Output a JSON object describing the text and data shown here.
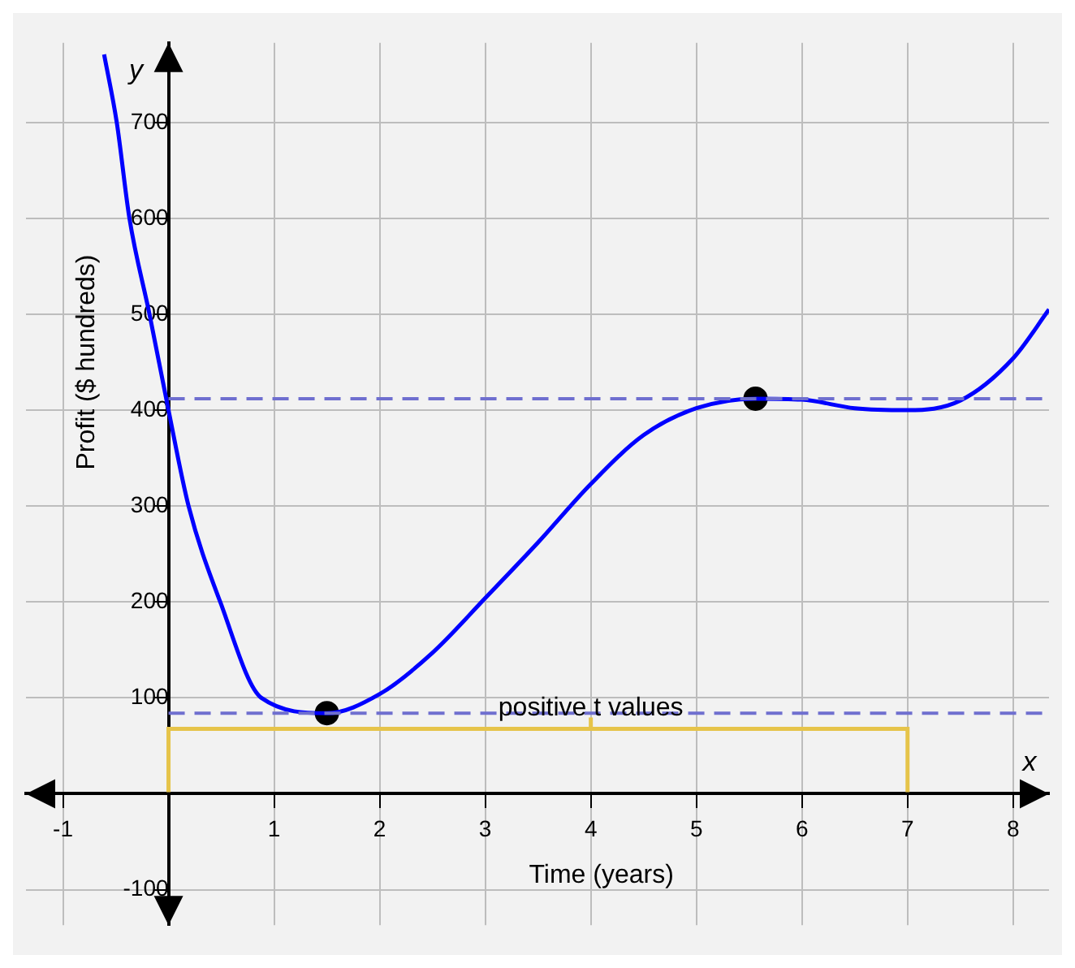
{
  "chart_data": {
    "type": "line",
    "xlabel": "Time (years)",
    "ylabel": "Profit ($ hundreds)",
    "annotations": [
      "x",
      "y",
      "positive t values"
    ],
    "xlim": [
      -1.35,
      8.34
    ],
    "ylim": [
      -137,
      783
    ],
    "xticks": [
      -1,
      1,
      2,
      3,
      4,
      5,
      6,
      7,
      8
    ],
    "yticks": [
      -100,
      100,
      200,
      300,
      400,
      500,
      600,
      700
    ],
    "grid": true,
    "legend": false,
    "series": [
      {
        "color": "#0000ff",
        "marker": "none",
        "x": [
          -0.61,
          -0.49,
          -0.37,
          -0.18,
          0,
          0.19,
          0.49,
          0.88,
          1.5,
          2,
          2.5,
          3,
          3.5,
          4,
          4.5,
          5,
          5.56,
          6,
          6.5,
          7,
          7.5,
          8,
          8.34
        ],
        "values": [
          771,
          700,
          600,
          500,
          400,
          300,
          200,
          100,
          84,
          104,
          147,
          204,
          262,
          323,
          374,
          402,
          412,
          411,
          402,
          400,
          410,
          454,
          505
        ]
      },
      {
        "type": "scatter",
        "color": "#000000",
        "marker": "circle",
        "x": [
          1.5,
          5.56
        ],
        "values": [
          84,
          412
        ]
      }
    ],
    "ref_lines": [
      {
        "axis": "y",
        "value": 84,
        "color": "#6f6fcf",
        "line_style": "dashed"
      },
      {
        "axis": "y",
        "value": 412,
        "color": "#6f6fcf",
        "line_style": "dashed"
      }
    ]
  }
}
